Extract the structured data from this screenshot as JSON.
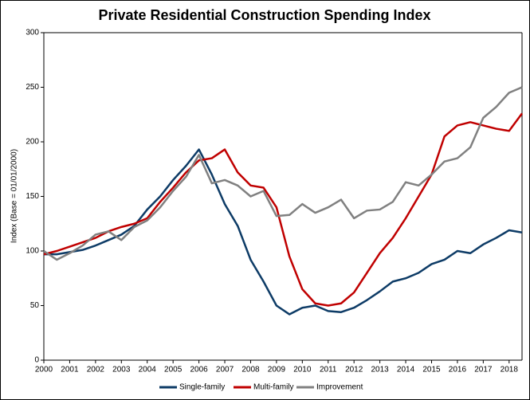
{
  "chart_data": {
    "type": "line",
    "title": "Private Residential Construction Spending Index",
    "y_label": "Index (Base = 01/01/2000)",
    "x": [
      2000,
      2000.5,
      2001,
      2001.5,
      2002,
      2002.5,
      2003,
      2003.5,
      2004,
      2004.5,
      2005,
      2005.5,
      2006,
      2006.5,
      2007,
      2007.5,
      2008,
      2008.5,
      2009,
      2009.5,
      2010,
      2010.5,
      2011,
      2011.5,
      2012,
      2012.5,
      2013,
      2013.5,
      2014,
      2014.5,
      2015,
      2015.5,
      2016,
      2016.5,
      2017,
      2017.5,
      2018,
      2018.5
    ],
    "series": [
      {
        "name": "Single-family",
        "color": "#0d3b66",
        "values": [
          97,
          97,
          99,
          101,
          105,
          110,
          115,
          123,
          138,
          150,
          165,
          178,
          193,
          170,
          143,
          123,
          92,
          72,
          50,
          42,
          48,
          50,
          45,
          44,
          48,
          55,
          63,
          72,
          75,
          80,
          88,
          92,
          100,
          98,
          106,
          112,
          119,
          117
        ]
      },
      {
        "name": "Multi-family",
        "color": "#c00000",
        "values": [
          97,
          100,
          104,
          108,
          112,
          118,
          122,
          125,
          130,
          145,
          158,
          172,
          183,
          185,
          193,
          172,
          160,
          158,
          140,
          95,
          65,
          52,
          50,
          52,
          62,
          80,
          98,
          112,
          130,
          150,
          170,
          205,
          215,
          218,
          215,
          212,
          210,
          226
        ]
      },
      {
        "name": "Improvement",
        "color": "#808080",
        "values": [
          100,
          92,
          98,
          105,
          115,
          118,
          110,
          122,
          128,
          140,
          155,
          168,
          188,
          162,
          165,
          160,
          150,
          155,
          132,
          133,
          143,
          135,
          140,
          147,
          130,
          137,
          138,
          145,
          163,
          160,
          170,
          182,
          185,
          195,
          222,
          232,
          245,
          250
        ]
      }
    ],
    "xlim": [
      2000,
      2018.5
    ],
    "xticks": [
      2000,
      2001,
      2002,
      2003,
      2004,
      2005,
      2006,
      2007,
      2008,
      2009,
      2010,
      2011,
      2012,
      2013,
      2014,
      2015,
      2016,
      2017,
      2018
    ],
    "ylim": [
      0,
      300
    ],
    "yticks": [
      0,
      50,
      100,
      150,
      200,
      250,
      300
    ],
    "grid": false,
    "legend": "bottom"
  }
}
